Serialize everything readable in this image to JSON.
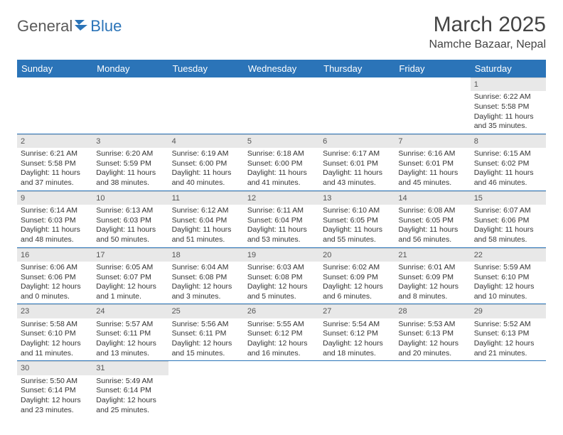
{
  "logo": {
    "text1": "General",
    "text2": "Blue"
  },
  "title": "March 2025",
  "location": "Namche Bazaar, Nepal",
  "colors": {
    "header_bg": "#2b74b8",
    "header_text": "#ffffff",
    "daynum_bg": "#e8e8e8",
    "border": "#2b74b8",
    "logo_gray": "#5a5a5a",
    "logo_blue": "#2b74b8"
  },
  "weekdays": [
    "Sunday",
    "Monday",
    "Tuesday",
    "Wednesday",
    "Thursday",
    "Friday",
    "Saturday"
  ],
  "first_day_col": 6,
  "days": [
    {
      "n": 1,
      "sunrise": "6:22 AM",
      "sunset": "5:58 PM",
      "daylight": "11 hours and 35 minutes."
    },
    {
      "n": 2,
      "sunrise": "6:21 AM",
      "sunset": "5:58 PM",
      "daylight": "11 hours and 37 minutes."
    },
    {
      "n": 3,
      "sunrise": "6:20 AM",
      "sunset": "5:59 PM",
      "daylight": "11 hours and 38 minutes."
    },
    {
      "n": 4,
      "sunrise": "6:19 AM",
      "sunset": "6:00 PM",
      "daylight": "11 hours and 40 minutes."
    },
    {
      "n": 5,
      "sunrise": "6:18 AM",
      "sunset": "6:00 PM",
      "daylight": "11 hours and 41 minutes."
    },
    {
      "n": 6,
      "sunrise": "6:17 AM",
      "sunset": "6:01 PM",
      "daylight": "11 hours and 43 minutes."
    },
    {
      "n": 7,
      "sunrise": "6:16 AM",
      "sunset": "6:01 PM",
      "daylight": "11 hours and 45 minutes."
    },
    {
      "n": 8,
      "sunrise": "6:15 AM",
      "sunset": "6:02 PM",
      "daylight": "11 hours and 46 minutes."
    },
    {
      "n": 9,
      "sunrise": "6:14 AM",
      "sunset": "6:03 PM",
      "daylight": "11 hours and 48 minutes."
    },
    {
      "n": 10,
      "sunrise": "6:13 AM",
      "sunset": "6:03 PM",
      "daylight": "11 hours and 50 minutes."
    },
    {
      "n": 11,
      "sunrise": "6:12 AM",
      "sunset": "6:04 PM",
      "daylight": "11 hours and 51 minutes."
    },
    {
      "n": 12,
      "sunrise": "6:11 AM",
      "sunset": "6:04 PM",
      "daylight": "11 hours and 53 minutes."
    },
    {
      "n": 13,
      "sunrise": "6:10 AM",
      "sunset": "6:05 PM",
      "daylight": "11 hours and 55 minutes."
    },
    {
      "n": 14,
      "sunrise": "6:08 AM",
      "sunset": "6:05 PM",
      "daylight": "11 hours and 56 minutes."
    },
    {
      "n": 15,
      "sunrise": "6:07 AM",
      "sunset": "6:06 PM",
      "daylight": "11 hours and 58 minutes."
    },
    {
      "n": 16,
      "sunrise": "6:06 AM",
      "sunset": "6:06 PM",
      "daylight": "12 hours and 0 minutes."
    },
    {
      "n": 17,
      "sunrise": "6:05 AM",
      "sunset": "6:07 PM",
      "daylight": "12 hours and 1 minute."
    },
    {
      "n": 18,
      "sunrise": "6:04 AM",
      "sunset": "6:08 PM",
      "daylight": "12 hours and 3 minutes."
    },
    {
      "n": 19,
      "sunrise": "6:03 AM",
      "sunset": "6:08 PM",
      "daylight": "12 hours and 5 minutes."
    },
    {
      "n": 20,
      "sunrise": "6:02 AM",
      "sunset": "6:09 PM",
      "daylight": "12 hours and 6 minutes."
    },
    {
      "n": 21,
      "sunrise": "6:01 AM",
      "sunset": "6:09 PM",
      "daylight": "12 hours and 8 minutes."
    },
    {
      "n": 22,
      "sunrise": "5:59 AM",
      "sunset": "6:10 PM",
      "daylight": "12 hours and 10 minutes."
    },
    {
      "n": 23,
      "sunrise": "5:58 AM",
      "sunset": "6:10 PM",
      "daylight": "12 hours and 11 minutes."
    },
    {
      "n": 24,
      "sunrise": "5:57 AM",
      "sunset": "6:11 PM",
      "daylight": "12 hours and 13 minutes."
    },
    {
      "n": 25,
      "sunrise": "5:56 AM",
      "sunset": "6:11 PM",
      "daylight": "12 hours and 15 minutes."
    },
    {
      "n": 26,
      "sunrise": "5:55 AM",
      "sunset": "6:12 PM",
      "daylight": "12 hours and 16 minutes."
    },
    {
      "n": 27,
      "sunrise": "5:54 AM",
      "sunset": "6:12 PM",
      "daylight": "12 hours and 18 minutes."
    },
    {
      "n": 28,
      "sunrise": "5:53 AM",
      "sunset": "6:13 PM",
      "daylight": "12 hours and 20 minutes."
    },
    {
      "n": 29,
      "sunrise": "5:52 AM",
      "sunset": "6:13 PM",
      "daylight": "12 hours and 21 minutes."
    },
    {
      "n": 30,
      "sunrise": "5:50 AM",
      "sunset": "6:14 PM",
      "daylight": "12 hours and 23 minutes."
    },
    {
      "n": 31,
      "sunrise": "5:49 AM",
      "sunset": "6:14 PM",
      "daylight": "12 hours and 25 minutes."
    }
  ],
  "labels": {
    "sunrise": "Sunrise:",
    "sunset": "Sunset:",
    "daylight": "Daylight:"
  }
}
